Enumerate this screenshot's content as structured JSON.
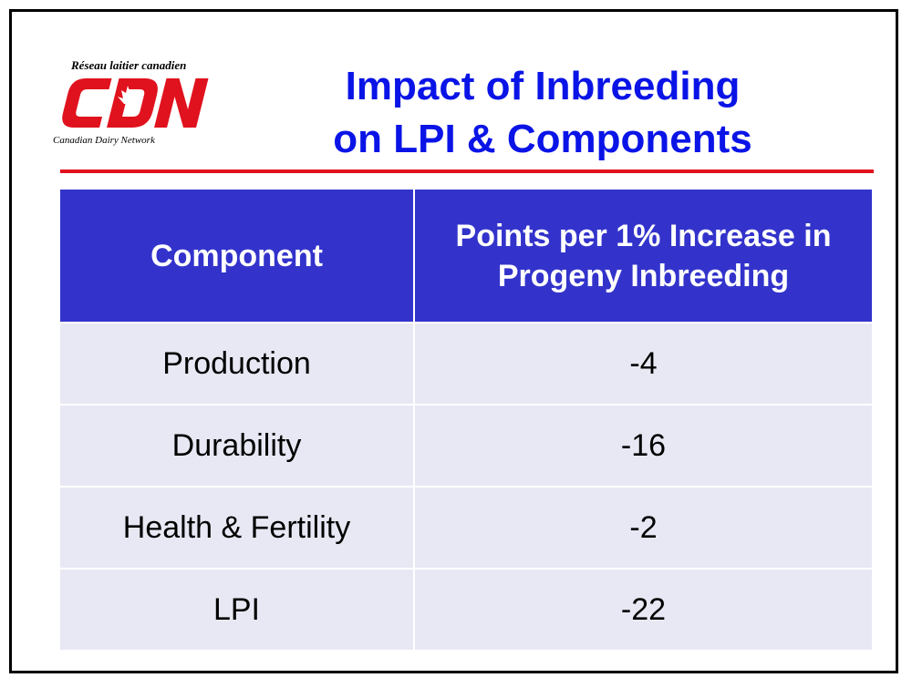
{
  "logo": {
    "top_text": "Réseau laitier canadien",
    "bottom_text": "Canadian Dairy Network",
    "brand_color": "#e0121e"
  },
  "title": {
    "line1": "Impact of Inbreeding",
    "line2": "on LPI & Components",
    "color": "#0a14e6"
  },
  "table": {
    "headers": [
      "Component",
      "Points per 1% Increase in Progeny Inbreeding"
    ],
    "rows": [
      {
        "component": "Production",
        "points": "-4"
      },
      {
        "component": "Durability",
        "points": "-16"
      },
      {
        "component": "Health & Fertility",
        "points": "-2"
      },
      {
        "component": "LPI",
        "points": "-22"
      }
    ],
    "header_bg": "#3333cc",
    "row_bg": "#e8e8f4"
  }
}
